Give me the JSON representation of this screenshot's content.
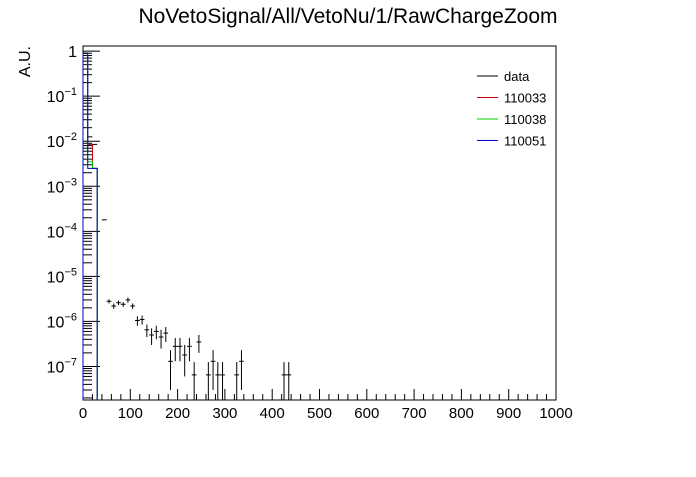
{
  "chart_data": {
    "type": "histogram",
    "title": "NoVetoSignal/All/VetoNu/1/RawChargeZoom",
    "xlabel": "",
    "ylabel": "A.U.",
    "xlim": [
      0,
      1000
    ],
    "ylim": [
      1.8e-08,
      1.3
    ],
    "yscale": "log",
    "grid": false,
    "legend_position": "top-right",
    "x_ticks": [
      0,
      100,
      200,
      300,
      400,
      500,
      600,
      700,
      800,
      900,
      1000
    ],
    "y_ticks": [
      {
        "value": 1,
        "label": "1"
      },
      {
        "value": 0.1,
        "label": "10",
        "exp": "−1"
      },
      {
        "value": 0.01,
        "label": "10",
        "exp": "−2"
      },
      {
        "value": 0.001,
        "label": "10",
        "exp": "−3"
      },
      {
        "value": 0.0001,
        "label": "10",
        "exp": "−4"
      },
      {
        "value": 1e-05,
        "label": "10",
        "exp": "−5"
      },
      {
        "value": 1e-06,
        "label": "10",
        "exp": "−6"
      },
      {
        "value": 1e-07,
        "label": "10",
        "exp": "−7"
      }
    ],
    "series": [
      {
        "name": "data",
        "color": "#000000",
        "style": "points",
        "bin_width": 10,
        "points": [
          {
            "x": 5,
            "y": 0.9,
            "err": 0.0
          },
          {
            "x": 15,
            "y": 0.0125,
            "err": 0.0
          },
          {
            "x": 25,
            "y": 0.0085,
            "err": 0.0
          },
          {
            "x": 45,
            "y": 0.00018,
            "err": 0.0
          },
          {
            "x": 55,
            "y": 2.8e-06,
            "err": 3e-07
          },
          {
            "x": 65,
            "y": 2.2e-06,
            "err": 3e-07
          },
          {
            "x": 75,
            "y": 2.6e-06,
            "err": 3e-07
          },
          {
            "x": 85,
            "y": 2.4e-06,
            "err": 3e-07
          },
          {
            "x": 95,
            "y": 3e-06,
            "err": 4e-07
          },
          {
            "x": 105,
            "y": 2.2e-06,
            "err": 3e-07
          },
          {
            "x": 115,
            "y": 1.05e-06,
            "err": 2.5e-07
          },
          {
            "x": 125,
            "y": 1.1e-06,
            "err": 2.5e-07
          },
          {
            "x": 135,
            "y": 6.5e-07,
            "err": 2e-07
          },
          {
            "x": 145,
            "y": 5e-07,
            "err": 2e-07
          },
          {
            "x": 155,
            "y": 6e-07,
            "err": 2e-07
          },
          {
            "x": 165,
            "y": 4.5e-07,
            "err": 2e-07
          },
          {
            "x": 175,
            "y": 5.5e-07,
            "err": 2e-07
          },
          {
            "x": 185,
            "y": 1.3e-07,
            "err": 1e-07
          },
          {
            "x": 195,
            "y": 2.8e-07,
            "err": 1.5e-07
          },
          {
            "x": 205,
            "y": 2.8e-07,
            "err": 1.5e-07
          },
          {
            "x": 215,
            "y": 1.8e-07,
            "err": 1.2e-07
          },
          {
            "x": 225,
            "y": 2.8e-07,
            "err": 1.5e-07
          },
          {
            "x": 235,
            "y": 6.5e-08,
            "err": 6e-08
          },
          {
            "x": 245,
            "y": 3.5e-07,
            "err": 1.5e-07
          },
          {
            "x": 265,
            "y": 6.5e-08,
            "err": 6e-08
          },
          {
            "x": 275,
            "y": 1.3e-07,
            "err": 1e-07
          },
          {
            "x": 285,
            "y": 6.5e-08,
            "err": 6e-08
          },
          {
            "x": 295,
            "y": 6.5e-08,
            "err": 6e-08
          },
          {
            "x": 325,
            "y": 6.5e-08,
            "err": 6e-08
          },
          {
            "x": 335,
            "y": 1.3e-07,
            "err": 1e-07
          },
          {
            "x": 425,
            "y": 6.5e-08,
            "err": 6e-08
          },
          {
            "x": 435,
            "y": 6.5e-08,
            "err": 6e-08
          }
        ]
      },
      {
        "name": "110033",
        "color": "#cc0000",
        "style": "step",
        "bin_edges": [
          0,
          10,
          20,
          30
        ],
        "values": [
          0.9,
          0.0085,
          0.0025
        ]
      },
      {
        "name": "110038",
        "color": "#00cc00",
        "style": "step",
        "bin_edges": [
          0,
          10,
          20,
          30
        ],
        "values": [
          0.9,
          0.0035,
          0.0025
        ]
      },
      {
        "name": "110051",
        "color": "#0000cc",
        "style": "step",
        "bin_edges": [
          0,
          10,
          20,
          30
        ],
        "values": [
          0.9,
          0.0025,
          0.0025
        ]
      }
    ]
  }
}
